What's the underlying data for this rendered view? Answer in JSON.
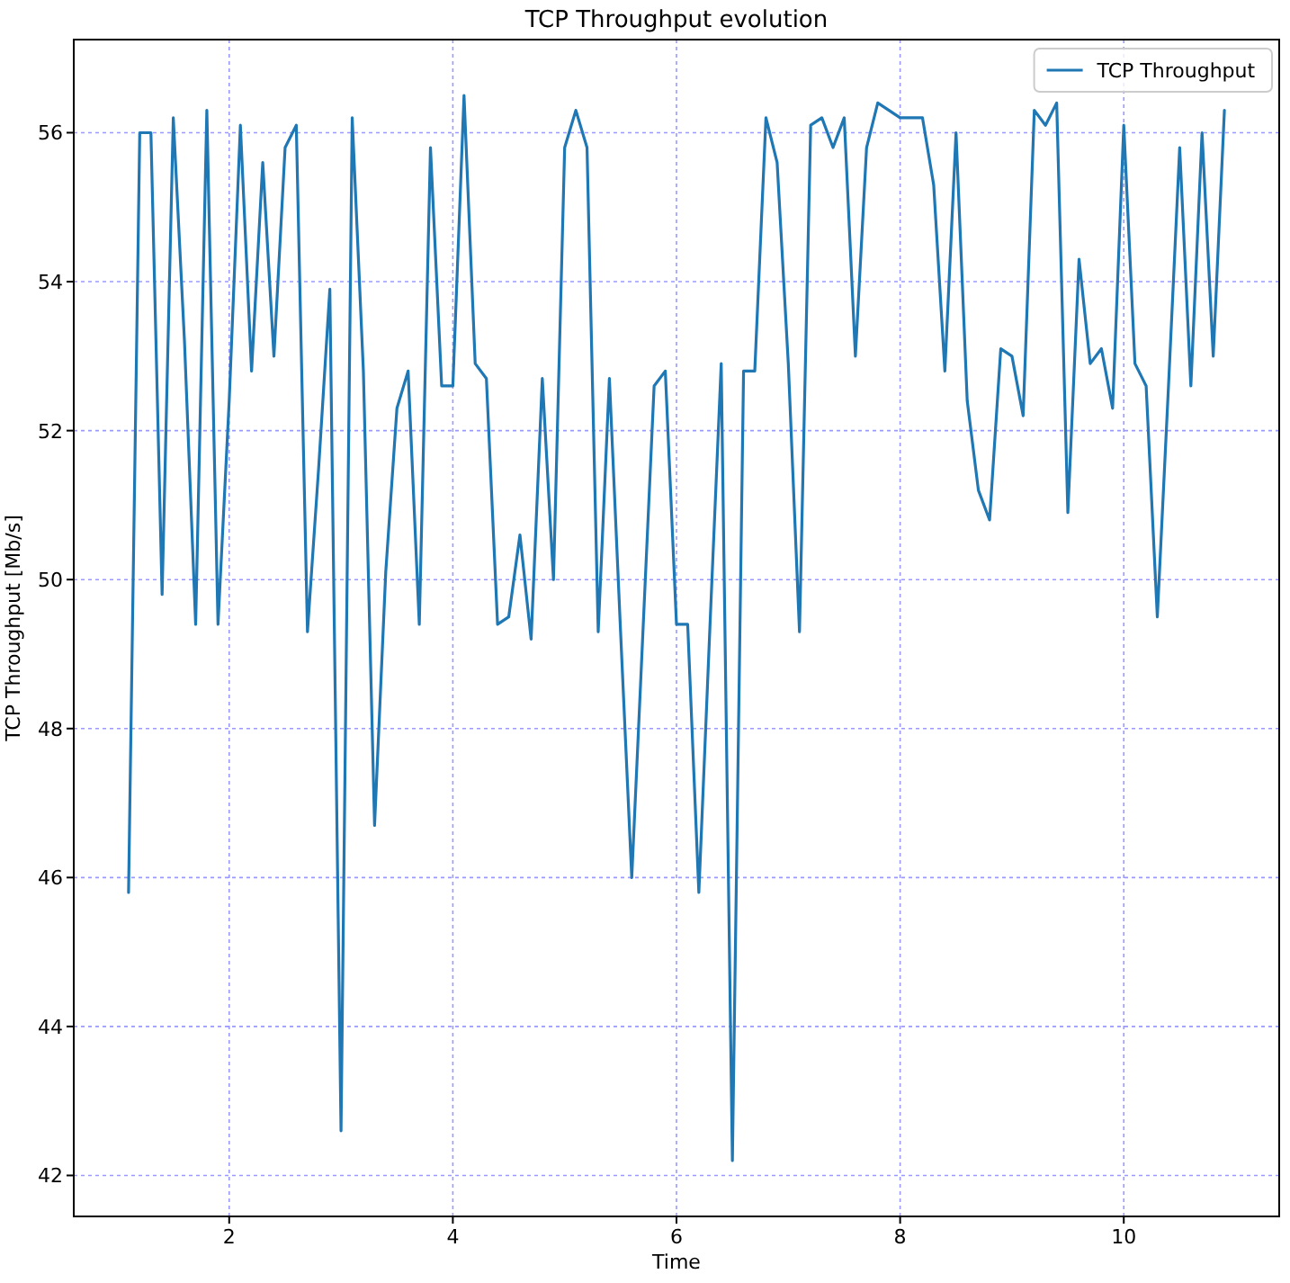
{
  "chart_data": {
    "type": "line",
    "title": "TCP Throughput evolution",
    "xlabel": "Time",
    "ylabel": "TCP Throughput [Mb/s]",
    "x": [
      1.1,
      1.2,
      1.3,
      1.4,
      1.5,
      1.6,
      1.7,
      1.8,
      1.9,
      2.0,
      2.1,
      2.2,
      2.3,
      2.4,
      2.5,
      2.6,
      2.7,
      2.8,
      2.9,
      3.0,
      3.1,
      3.2,
      3.3,
      3.4,
      3.5,
      3.6,
      3.7,
      3.8,
      3.9,
      4.0,
      4.1,
      4.2,
      4.3,
      4.4,
      4.5,
      4.6,
      4.7,
      4.8,
      4.9,
      5.0,
      5.1,
      5.2,
      5.3,
      5.4,
      5.5,
      5.6,
      5.7,
      5.8,
      5.9,
      6.0,
      6.1,
      6.2,
      6.3,
      6.4,
      6.5,
      6.6,
      6.7,
      6.8,
      6.9,
      7.0,
      7.1,
      7.2,
      7.3,
      7.4,
      7.5,
      7.6,
      7.7,
      7.8,
      7.9,
      8.0,
      8.1,
      8.2,
      8.3,
      8.4,
      8.5,
      8.6,
      8.7,
      8.8,
      8.9,
      9.0,
      9.1,
      9.2,
      9.3,
      9.4,
      9.5,
      9.6,
      9.7,
      9.8,
      9.9,
      10.0,
      10.1,
      10.2,
      10.3,
      10.4,
      10.5,
      10.6,
      10.7,
      10.8,
      10.9
    ],
    "series": [
      {
        "name": "TCP Throughput",
        "color": "#1f77b4",
        "values": [
          45.8,
          56.0,
          56.0,
          49.8,
          56.2,
          53.2,
          49.4,
          56.3,
          49.4,
          52.4,
          56.1,
          52.8,
          55.6,
          53.0,
          55.8,
          56.1,
          49.3,
          51.5,
          53.9,
          42.6,
          56.2,
          52.8,
          46.7,
          50.1,
          52.3,
          52.8,
          49.4,
          55.8,
          52.6,
          52.6,
          56.5,
          52.9,
          52.7,
          49.4,
          49.5,
          50.6,
          49.2,
          52.7,
          50.0,
          55.8,
          56.3,
          55.8,
          49.3,
          52.7,
          49.3,
          46.0,
          49.3,
          52.6,
          52.8,
          49.4,
          49.4,
          45.8,
          49.4,
          52.9,
          42.2,
          52.8,
          52.8,
          56.2,
          55.6,
          52.9,
          49.3,
          56.1,
          56.2,
          55.8,
          56.2,
          53.0,
          55.8,
          56.4,
          56.3,
          56.2,
          56.2,
          56.2,
          55.3,
          52.8,
          56.0,
          52.4,
          51.2,
          50.8,
          53.1,
          53.0,
          52.2,
          56.3,
          56.1,
          56.4,
          50.9,
          54.3,
          52.9,
          53.1,
          52.3,
          56.1,
          52.9,
          52.6,
          49.5,
          52.6,
          55.8,
          52.6,
          56.0,
          53.0,
          56.3
        ]
      }
    ],
    "xlim": [
      0.61,
      11.39
    ],
    "ylim": [
      41.45,
      57.25
    ],
    "xticks": [
      2,
      4,
      6,
      8,
      10
    ],
    "yticks": [
      42,
      44,
      46,
      48,
      50,
      52,
      54,
      56
    ],
    "grid": true,
    "legend": "top right"
  }
}
